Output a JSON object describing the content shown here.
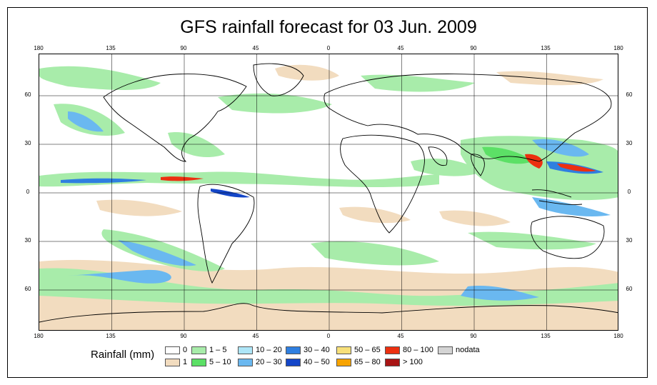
{
  "title": "GFS rainfall forecast for 03 Jun. 2009",
  "map": {
    "lon_ticks": [
      "180",
      "135",
      "90",
      "45",
      "0",
      "45",
      "90",
      "135",
      "180"
    ],
    "lat_ticks": [
      "60",
      "30",
      "0",
      "30",
      "60"
    ]
  },
  "legend": {
    "label": "Rainfall (mm)",
    "items": [
      {
        "label": "0",
        "color": "#ffffff"
      },
      {
        "label": "1",
        "color": "#f2dcbf"
      },
      {
        "label": "1 – 5",
        "color": "#a8ecaa"
      },
      {
        "label": "5 – 10",
        "color": "#5ce066"
      },
      {
        "label": "10 – 20",
        "color": "#aee6f8"
      },
      {
        "label": "20 – 30",
        "color": "#6ab8f0"
      },
      {
        "label": "30 – 40",
        "color": "#2f7fe0"
      },
      {
        "label": "40 – 50",
        "color": "#1446c8"
      },
      {
        "label": "50 – 65",
        "color": "#f8e07a"
      },
      {
        "label": "65 – 80",
        "color": "#f7a300"
      },
      {
        "label": "80 – 100",
        "color": "#ec3010"
      },
      {
        "label": "> 100",
        "color": "#a81414"
      },
      {
        "label": "nodata",
        "color": "#d4d4d4"
      }
    ]
  }
}
